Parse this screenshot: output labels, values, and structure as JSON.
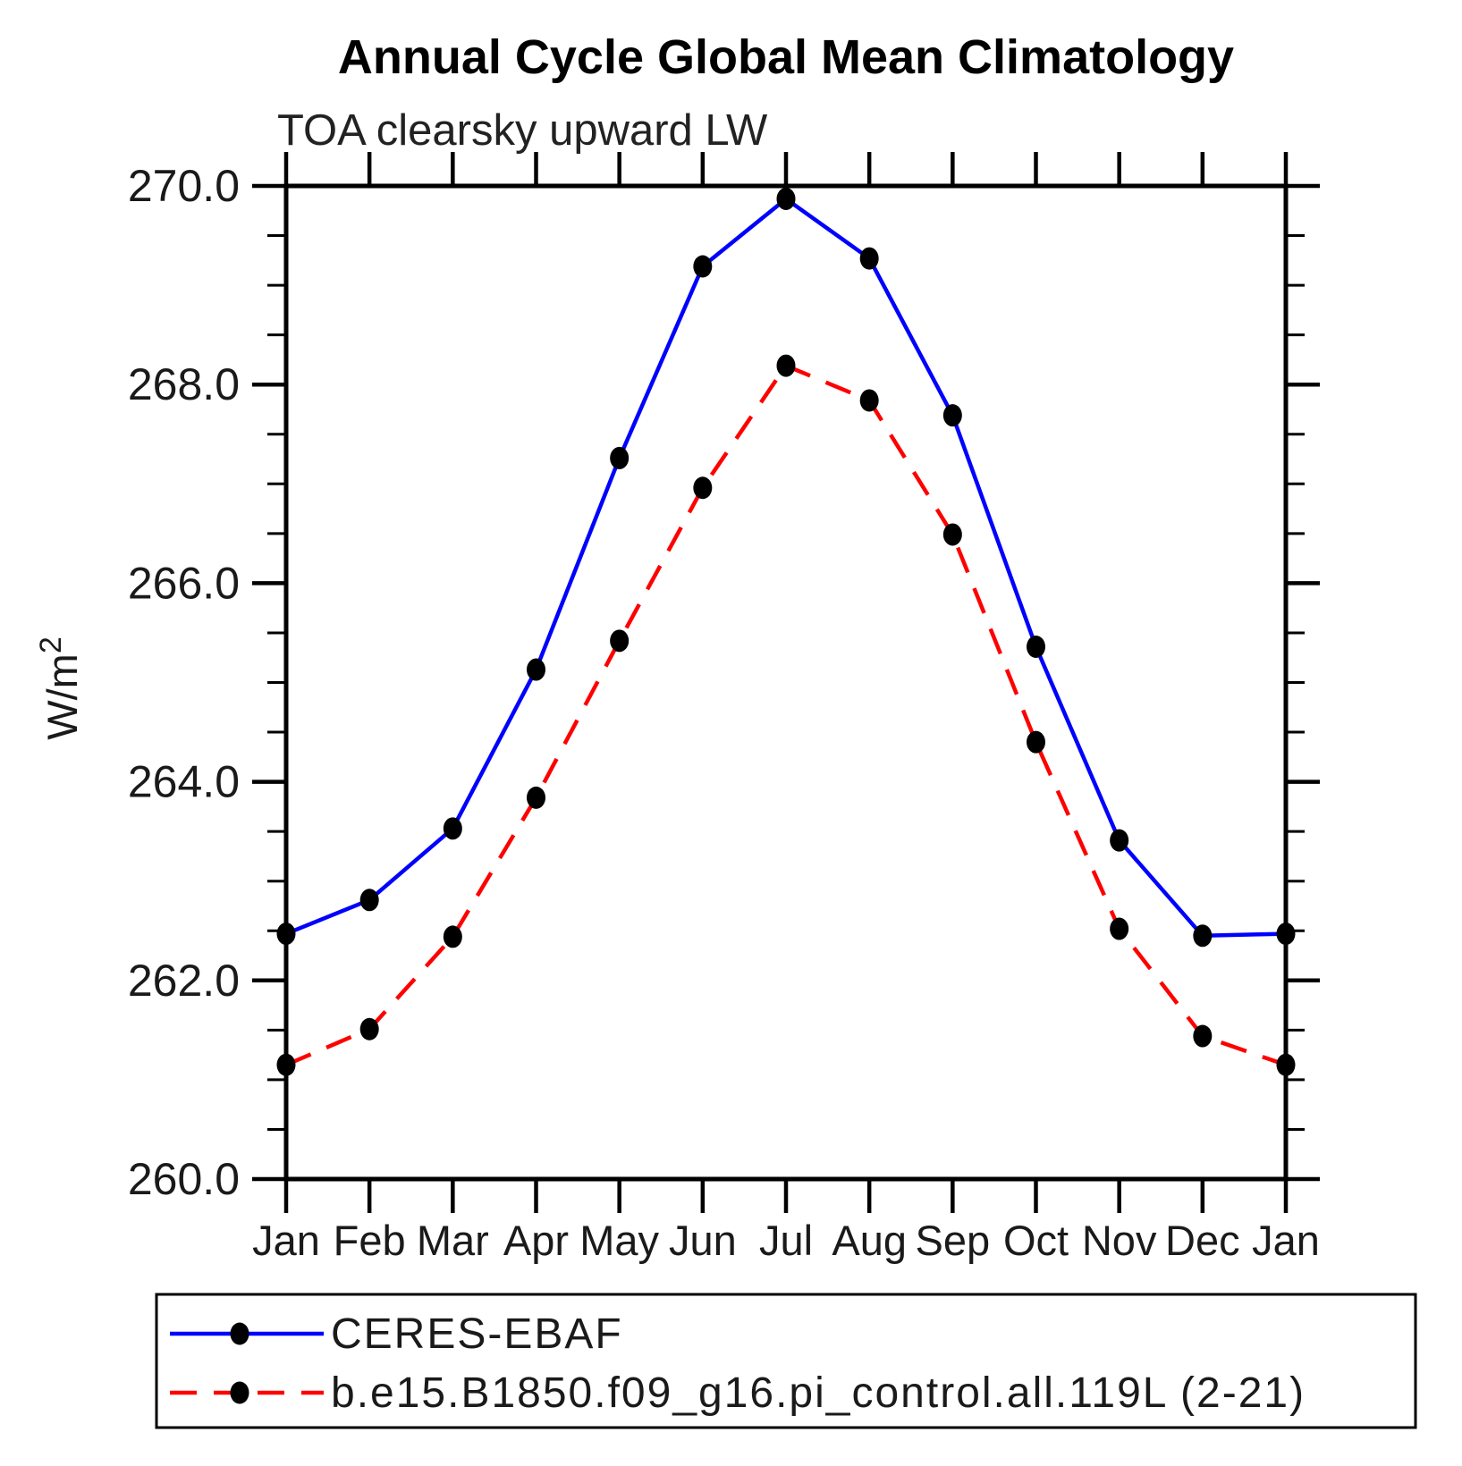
{
  "page": {
    "background": "#ffffff"
  },
  "chart_data": {
    "type": "line",
    "title": "Annual Cycle Global Mean Climatology",
    "subtitle": "TOA clearsky upward LW",
    "ylabel_main": "W/m",
    "ylabel_superscript": "2",
    "categories": [
      "Jan",
      "Feb",
      "Mar",
      "Apr",
      "May",
      "Jun",
      "Jul",
      "Aug",
      "Sep",
      "Oct",
      "Nov",
      "Dec",
      "Jan"
    ],
    "ylim": [
      260.0,
      270.0
    ],
    "ytick_major_step": 2.0,
    "ytick_minor_step": 0.5,
    "ytick_labels": [
      "260.0",
      "262.0",
      "264.0",
      "266.0",
      "268.0",
      "270.0"
    ],
    "grid": false,
    "legend_position": "bottom-left-box",
    "axis_color": "#000000",
    "marker_color": "#000000",
    "series": [
      {
        "name": "CERES-EBAF",
        "color": "#0000ff",
        "line_style": "solid",
        "values": [
          262.47,
          262.81,
          263.53,
          265.13,
          267.26,
          269.19,
          269.87,
          269.27,
          267.69,
          265.36,
          263.41,
          262.45,
          262.47
        ]
      },
      {
        "name": "b.e15.B1850.f09_g16.pi_control.all.119L (2-21)",
        "color": "#ff0000",
        "line_style": "dashed",
        "values": [
          261.15,
          261.51,
          262.44,
          263.84,
          265.42,
          266.96,
          268.19,
          267.84,
          266.49,
          264.4,
          262.52,
          261.44,
          261.15
        ]
      }
    ]
  }
}
